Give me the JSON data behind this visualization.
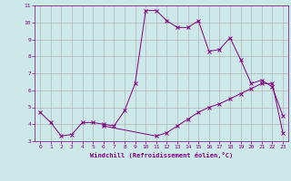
{
  "xlabel": "Windchill (Refroidissement éolien,°C)",
  "x_values": [
    0,
    1,
    2,
    3,
    4,
    5,
    6,
    7,
    8,
    9,
    10,
    11,
    12,
    13,
    14,
    15,
    16,
    17,
    18,
    19,
    20,
    21,
    22,
    23
  ],
  "line1_y": [
    4.7,
    4.1,
    3.3,
    3.4,
    4.1,
    4.1,
    4.0,
    3.9,
    4.8,
    6.4,
    10.7,
    10.7,
    10.1,
    9.7,
    9.7,
    10.1,
    8.3,
    8.4,
    9.1,
    7.8,
    6.4,
    6.6,
    6.2,
    4.5
  ],
  "line2_x": [
    6,
    11,
    12,
    13,
    14,
    15,
    16,
    17,
    18,
    19,
    20,
    21,
    22,
    23
  ],
  "line2_y": [
    3.9,
    3.3,
    3.5,
    3.9,
    4.3,
    4.7,
    5.0,
    5.2,
    5.5,
    5.8,
    6.1,
    6.4,
    6.4,
    3.5
  ],
  "line_color": "#800080",
  "bg_color": "#cce8e8",
  "grid_color": "#aaaaaa",
  "ylim": [
    3,
    11
  ],
  "xlim": [
    -0.5,
    23.5
  ]
}
